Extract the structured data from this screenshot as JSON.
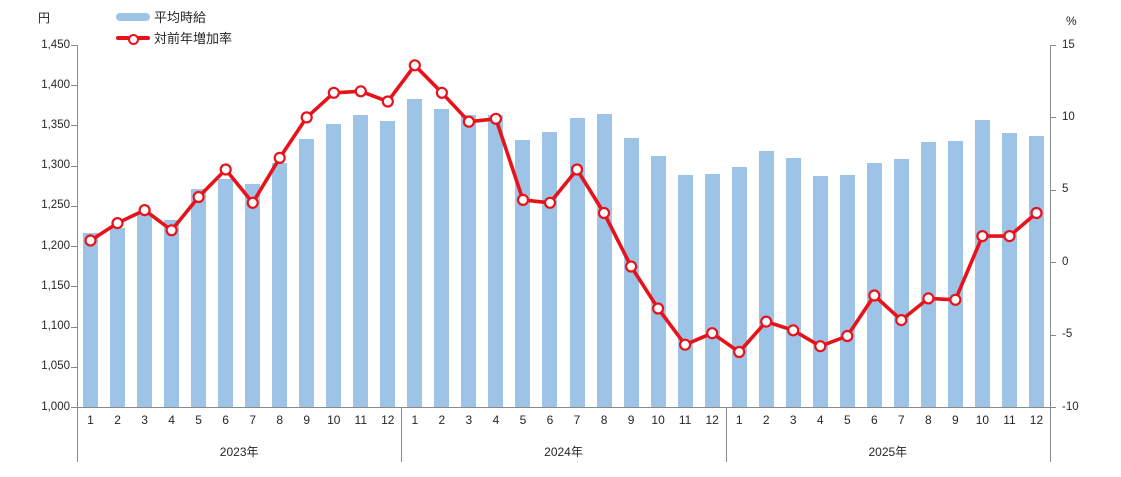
{
  "chart_data": {
    "type": "bar+line combo",
    "title": "",
    "left_axis": {
      "unit": "円",
      "min": 1000,
      "max": 1450,
      "step": 50,
      "tick_labels": [
        "1,450",
        "1,400",
        "1,350",
        "1,300",
        "1,250",
        "1,200",
        "1,150",
        "1,100",
        "1,050",
        "1,000"
      ]
    },
    "right_axis": {
      "unit": "%",
      "min": -10,
      "max": 15,
      "step": 5,
      "tick_labels": [
        "15",
        "10",
        "5",
        "0",
        "-5",
        "-10"
      ]
    },
    "legend": [
      {
        "label": "平均時給",
        "type": "bar",
        "color": "#9DC3E6",
        "icon": "bar-swatch"
      },
      {
        "label": "対前年増加率",
        "type": "line",
        "color": "#E8131A",
        "icon": "line-marker-swatch"
      }
    ],
    "legend_position": "top-left",
    "grid": false,
    "categories_note": "months 1-12 grouped by year",
    "groups": [
      {
        "year": "2023年",
        "months": [
          "1",
          "2",
          "3",
          "4",
          "5",
          "6",
          "7",
          "8",
          "9",
          "10",
          "11",
          "12"
        ],
        "series": {
          "平均時給": [
            1216,
            1222,
            1240,
            1233,
            1271,
            1284,
            1277,
            1303,
            1333,
            1352,
            1363,
            1355
          ],
          "対前年増加率": [
            1.5,
            2.7,
            3.6,
            2.2,
            4.5,
            6.4,
            4.1,
            7.2,
            10.0,
            11.7,
            11.8,
            11.1
          ]
        }
      },
      {
        "year": "2024年",
        "months": [
          "1",
          "2",
          "3",
          "4",
          "5",
          "6",
          "7",
          "8",
          "9",
          "10",
          "11",
          "12"
        ],
        "series": {
          "平均時給": [
            1383,
            1371,
            1363,
            1363,
            1332,
            1342,
            1359,
            1364,
            1334,
            1312,
            1288,
            1290
          ],
          "対前年増加率": [
            13.6,
            11.7,
            9.7,
            9.9,
            4.3,
            4.1,
            6.4,
            3.4,
            -0.3,
            -3.2,
            -5.7,
            -4.9
          ]
        }
      },
      {
        "year": "2025年",
        "months": [
          "1",
          "2",
          "3",
          "4",
          "5",
          "6",
          "7",
          "8",
          "9",
          "10",
          "11",
          "12"
        ],
        "series": {
          "平均時給": [
            1298,
            1318,
            1309,
            1287,
            1289,
            1303,
            1308,
            1329,
            1331,
            1357,
            1340,
            1337
          ],
          "対前年増加率": [
            -6.2,
            -4.1,
            -4.7,
            -5.8,
            -5.1,
            -2.3,
            -4.0,
            -2.5,
            -2.6,
            1.8,
            1.8,
            3.4
          ]
        }
      }
    ],
    "marker_style": {
      "shape": "circle",
      "fill": "#FFFFFF",
      "stroke": "#E8131A"
    },
    "bar_color": "#9DC3E6",
    "line_color": "#E8131A",
    "axis_color": "#898989"
  }
}
